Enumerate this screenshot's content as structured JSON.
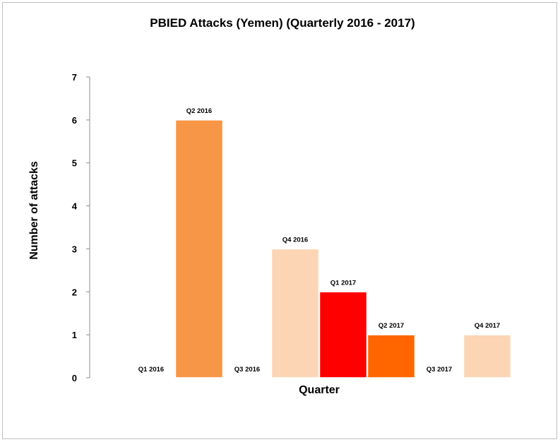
{
  "chart_data": {
    "type": "bar",
    "title": "PBIED Attacks (Yemen) (Quarterly 2016 - 2017)",
    "xlabel": "Quarter",
    "ylabel": "Number of attacks",
    "ylim": [
      0,
      7
    ],
    "yticks": [
      0,
      1,
      2,
      3,
      4,
      5,
      6,
      7
    ],
    "grid": false,
    "legend": "none",
    "categories": [
      "Q1 2016",
      "Q2 2016",
      "Q3 2016",
      "Q4 2016",
      "Q1 2017",
      "Q2 2017",
      "Q3 2017",
      "Q4 2017"
    ],
    "values": [
      0,
      6,
      0,
      3,
      2,
      1,
      0,
      1
    ],
    "data_labels": [
      "Q1 2016",
      "Q2 2016",
      "Q3 2016",
      "Q4 2016",
      "Q1 2017",
      "Q2 2017",
      "Q3 2017",
      "Q4 2017"
    ],
    "colors": [
      "#f79646",
      "#f79646",
      "#fcd5b4",
      "#fcd5b4",
      "#ff0000",
      "#ff6600",
      "#fcd5b4",
      "#fcd5b4"
    ]
  }
}
